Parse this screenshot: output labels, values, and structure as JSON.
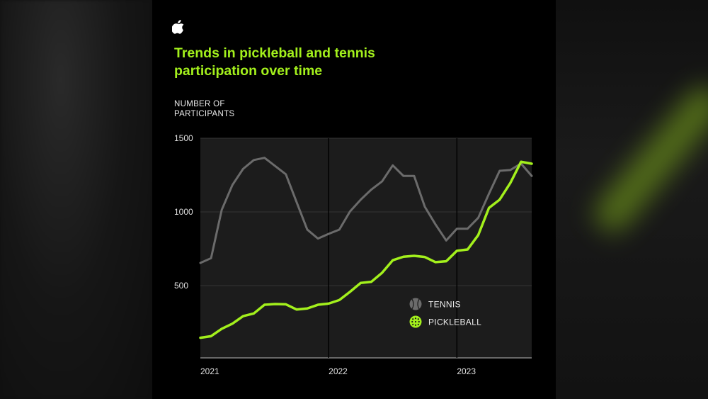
{
  "colors": {
    "tennis": "#6b6b6b",
    "pickleball": "#a3f01c",
    "plot_bg": "#1c1c1c",
    "title": "#a3f01c"
  },
  "logo": "apple-logo",
  "chart_data": {
    "type": "line",
    "title": "Trends in pickleball and tennis participation over time",
    "ylabel": "NUMBER OF PARTICIPANTS",
    "ylabel_lines": [
      "NUMBER OF",
      "PARTICIPANTS"
    ],
    "title_lines": [
      "Trends in pickleball and tennis",
      "participation over time"
    ],
    "xlabel": "",
    "x_ticks": [
      "2021",
      "2022",
      "2023"
    ],
    "y_ticks": [
      500,
      1000,
      1500
    ],
    "ylim": [
      0,
      1500
    ],
    "grid": true,
    "legend_placement": "bottom-right",
    "x": [
      "2021-01",
      "2021-02",
      "2021-03",
      "2021-04",
      "2021-05",
      "2021-06",
      "2021-07",
      "2021-08",
      "2021-09",
      "2021-10",
      "2021-11",
      "2021-12",
      "2022-01",
      "2022-02",
      "2022-03",
      "2022-04",
      "2022-05",
      "2022-06",
      "2022-07",
      "2022-08",
      "2022-09",
      "2022-10",
      "2022-11",
      "2022-12",
      "2023-01",
      "2023-02",
      "2023-03",
      "2023-04",
      "2023-05",
      "2023-06",
      "2023-07",
      "2023-08"
    ],
    "series": [
      {
        "name": "TENNIS",
        "icon": "tennis-ball-icon",
        "values": [
          654,
          686,
          1014,
          1183,
          1292,
          1352,
          1367,
          1311,
          1255,
          1067,
          880,
          819,
          851,
          880,
          1003,
          1083,
          1152,
          1207,
          1316,
          1244,
          1244,
          1035,
          915,
          806,
          886,
          886,
          960,
          1123,
          1279,
          1284,
          1328,
          1244
        ]
      },
      {
        "name": "PICKLEBALL",
        "icon": "pickleball-icon",
        "values": [
          146,
          157,
          207,
          242,
          293,
          311,
          370,
          375,
          373,
          338,
          345,
          370,
          378,
          402,
          458,
          518,
          526,
          587,
          672,
          696,
          702,
          694,
          659,
          665,
          736,
          745,
          843,
          1027,
          1083,
          1196,
          1340,
          1327
        ]
      }
    ]
  }
}
